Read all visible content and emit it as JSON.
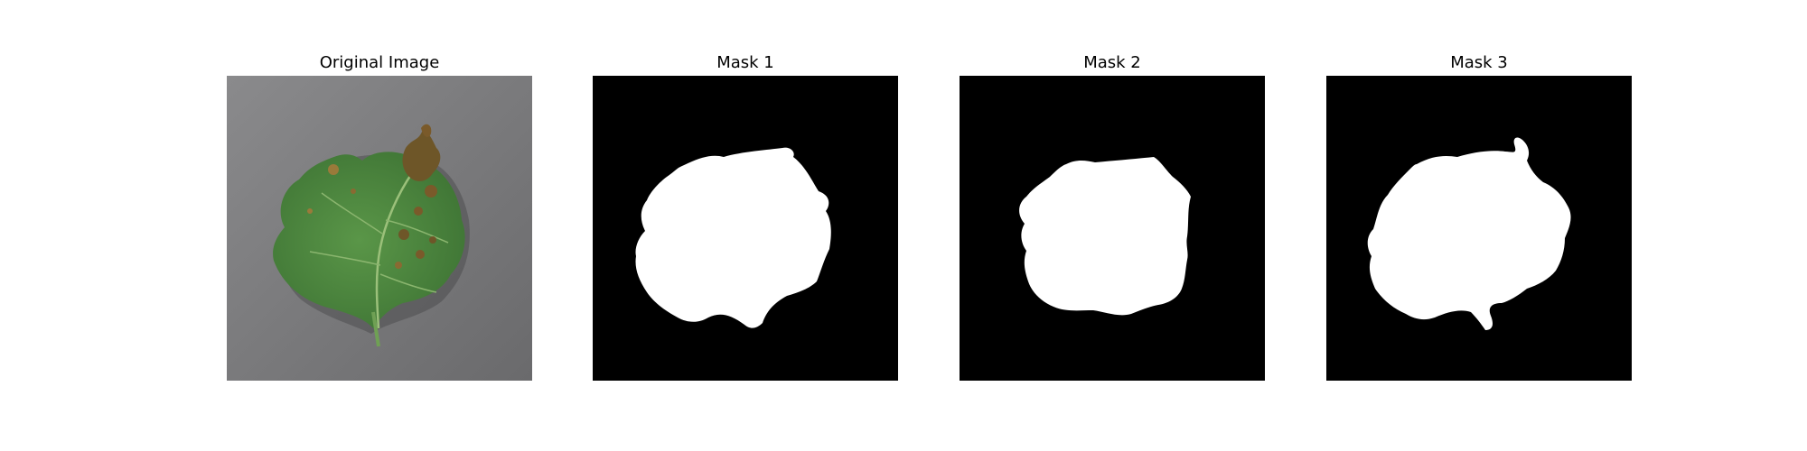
{
  "panels": [
    {
      "title": "Original Image",
      "kind": "photo"
    },
    {
      "title": "Mask 1",
      "kind": "mask"
    },
    {
      "title": "Mask 2",
      "kind": "mask"
    },
    {
      "title": "Mask 3",
      "kind": "mask"
    }
  ],
  "colors": {
    "background": "#ffffff",
    "mask_background": "#000000",
    "mask_foreground": "#ffffff",
    "photo_background": "#7b7b7d",
    "leaf_green": "#4f8a3f",
    "lesion_brown": "#7a5a2a"
  }
}
